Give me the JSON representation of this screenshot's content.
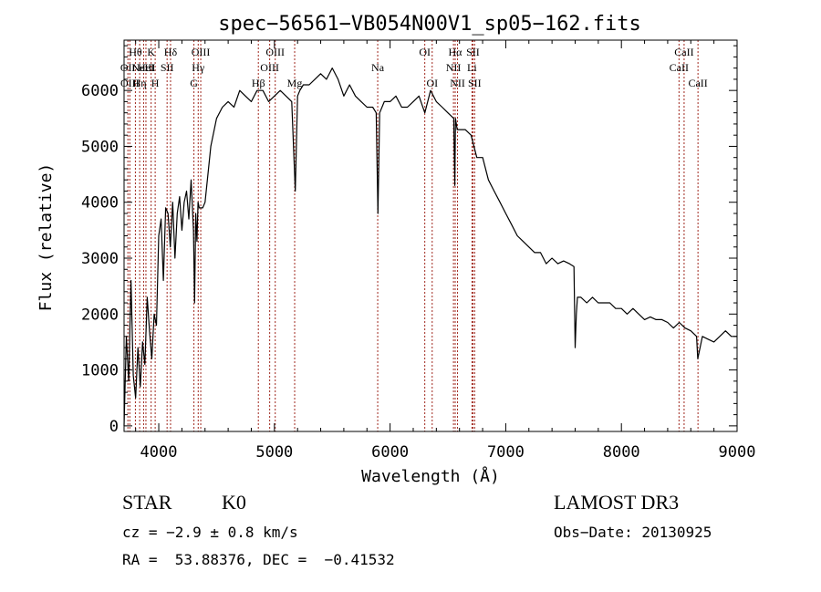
{
  "info": {
    "object_class": "STAR",
    "subclass": "K0",
    "survey": "LAMOST DR3",
    "cz": "cz = −2.9 ± 0.8 km/s",
    "obs_date": "Obs−Date: 20130925",
    "coords": "RA =  53.88376, DEC =  −0.41532"
  },
  "chart_data": {
    "type": "line",
    "title": "spec−56561−VB054N00V1_sp05−162.fits",
    "xlabel": "Wavelength (Å)",
    "ylabel": "Flux (relative)",
    "xlim": [
      3700,
      9000
    ],
    "ylim": [
      -100,
      6900
    ],
    "xticks": [
      4000,
      5000,
      6000,
      7000,
      8000,
      9000
    ],
    "yticks": [
      0,
      1000,
      2000,
      3000,
      4000,
      5000,
      6000
    ],
    "grid": false,
    "line_color": "#000000",
    "marker_color": "#a0281e",
    "series": [
      {
        "x": [
          3700,
          3720,
          3740,
          3760,
          3780,
          3800,
          3820,
          3840,
          3860,
          3880,
          3900,
          3920,
          3940,
          3960,
          3980,
          4000,
          4020,
          4040,
          4060,
          4080,
          4100,
          4120,
          4140,
          4160,
          4180,
          4200,
          4220,
          4240,
          4260,
          4280,
          4300,
          4310,
          4320,
          4330,
          4340,
          4350,
          4380,
          4400,
          4450,
          4500,
          4550,
          4600,
          4650,
          4700,
          4750,
          4800,
          4850,
          4900,
          4950,
          5000,
          5050,
          5100,
          5150,
          5180,
          5200,
          5220,
          5250,
          5300,
          5350,
          5400,
          5450,
          5500,
          5550,
          5600,
          5650,
          5700,
          5750,
          5800,
          5850,
          5880,
          5895,
          5910,
          5950,
          6000,
          6050,
          6100,
          6150,
          6200,
          6250,
          6300,
          6350,
          6400,
          6450,
          6500,
          6550,
          6560,
          6565,
          6580,
          6600,
          6650,
          6700,
          6750,
          6800,
          6850,
          6900,
          6950,
          7000,
          7050,
          7100,
          7150,
          7200,
          7250,
          7300,
          7350,
          7400,
          7450,
          7500,
          7550,
          7590,
          7600,
          7610,
          7620,
          7650,
          7700,
          7750,
          7800,
          7850,
          7900,
          7950,
          8000,
          8050,
          8100,
          8150,
          8200,
          8250,
          8300,
          8350,
          8400,
          8450,
          8500,
          8550,
          8600,
          8650,
          8660,
          8700,
          8750,
          8800,
          8850,
          8900,
          8950,
          9000
        ],
        "y": [
          0,
          1600,
          800,
          2600,
          900,
          500,
          1400,
          700,
          1500,
          1100,
          2300,
          1700,
          1200,
          2000,
          1800,
          3400,
          3700,
          2600,
          3900,
          3800,
          3200,
          4000,
          3000,
          3800,
          4100,
          3500,
          4000,
          4200,
          3700,
          4400,
          3500,
          2200,
          3800,
          3300,
          4000,
          3900,
          3900,
          4000,
          5000,
          5500,
          5700,
          5800,
          5700,
          6000,
          5900,
          5800,
          6000,
          6000,
          5800,
          5900,
          6000,
          5900,
          5800,
          4200,
          5900,
          6000,
          6100,
          6100,
          6200,
          6300,
          6200,
          6400,
          6200,
          5900,
          6100,
          5900,
          5800,
          5700,
          5700,
          5600,
          3800,
          5600,
          5800,
          5800,
          5900,
          5700,
          5700,
          5800,
          5900,
          5600,
          6000,
          5800,
          5700,
          5600,
          5500,
          4300,
          5500,
          5300,
          5300,
          5300,
          5200,
          4800,
          4800,
          4400,
          4200,
          4000,
          3800,
          3600,
          3400,
          3300,
          3200,
          3100,
          3100,
          2900,
          3000,
          2900,
          2950,
          2900,
          2850,
          1400,
          2000,
          2300,
          2300,
          2200,
          2300,
          2200,
          2200,
          2200,
          2100,
          2100,
          2000,
          2100,
          2000,
          1900,
          1950,
          1900,
          1900,
          1850,
          1750,
          1850,
          1750,
          1700,
          1600,
          1200,
          1600,
          1550,
          1500,
          1600,
          1700,
          1600,
          1600
        ]
      }
    ],
    "lines": [
      {
        "wl": 3733,
        "label": "OII",
        "row": 1
      },
      {
        "wl": 3750,
        "label": "OIII",
        "row": 2
      },
      {
        "wl": 3798,
        "label": "Hθ",
        "row": 0
      },
      {
        "wl": 3835,
        "label": "Hη",
        "row": 2
      },
      {
        "wl": 3869,
        "label": "NeIII",
        "row": 1
      },
      {
        "wl": 3889,
        "label": "HeI",
        "row": 1
      },
      {
        "wl": 3934,
        "label": "K",
        "row": 0
      },
      {
        "wl": 3969,
        "label": "H",
        "row": 2
      },
      {
        "wl": 4072,
        "label": "SII",
        "row": 1
      },
      {
        "wl": 4102,
        "label": "Hδ",
        "row": 0
      },
      {
        "wl": 4304,
        "label": "G",
        "row": 2
      },
      {
        "wl": 4341,
        "label": "Hγ",
        "row": 1
      },
      {
        "wl": 4363,
        "label": "OIII",
        "row": 0
      },
      {
        "wl": 4861,
        "label": "Hβ",
        "row": 2
      },
      {
        "wl": 4959,
        "label": "OIII",
        "row": 1
      },
      {
        "wl": 5007,
        "label": "OIII",
        "row": 0
      },
      {
        "wl": 5175,
        "label": "Mg",
        "row": 2
      },
      {
        "wl": 5893,
        "label": "Na",
        "row": 1
      },
      {
        "wl": 6300,
        "label": "OI",
        "row": 0
      },
      {
        "wl": 6364,
        "label": "OI",
        "row": 2
      },
      {
        "wl": 6548,
        "label": "NII",
        "row": 1
      },
      {
        "wl": 6563,
        "label": "Hα",
        "row": 0
      },
      {
        "wl": 6583,
        "label": "NII",
        "row": 2
      },
      {
        "wl": 6708,
        "label": "Li",
        "row": 1
      },
      {
        "wl": 6716,
        "label": "SII",
        "row": 0
      },
      {
        "wl": 6731,
        "label": "SII",
        "row": 2
      },
      {
        "wl": 8498,
        "label": "CaII",
        "row": 1
      },
      {
        "wl": 8542,
        "label": "CaII",
        "row": 0
      },
      {
        "wl": 8662,
        "label": "CaII",
        "row": 2
      }
    ]
  }
}
